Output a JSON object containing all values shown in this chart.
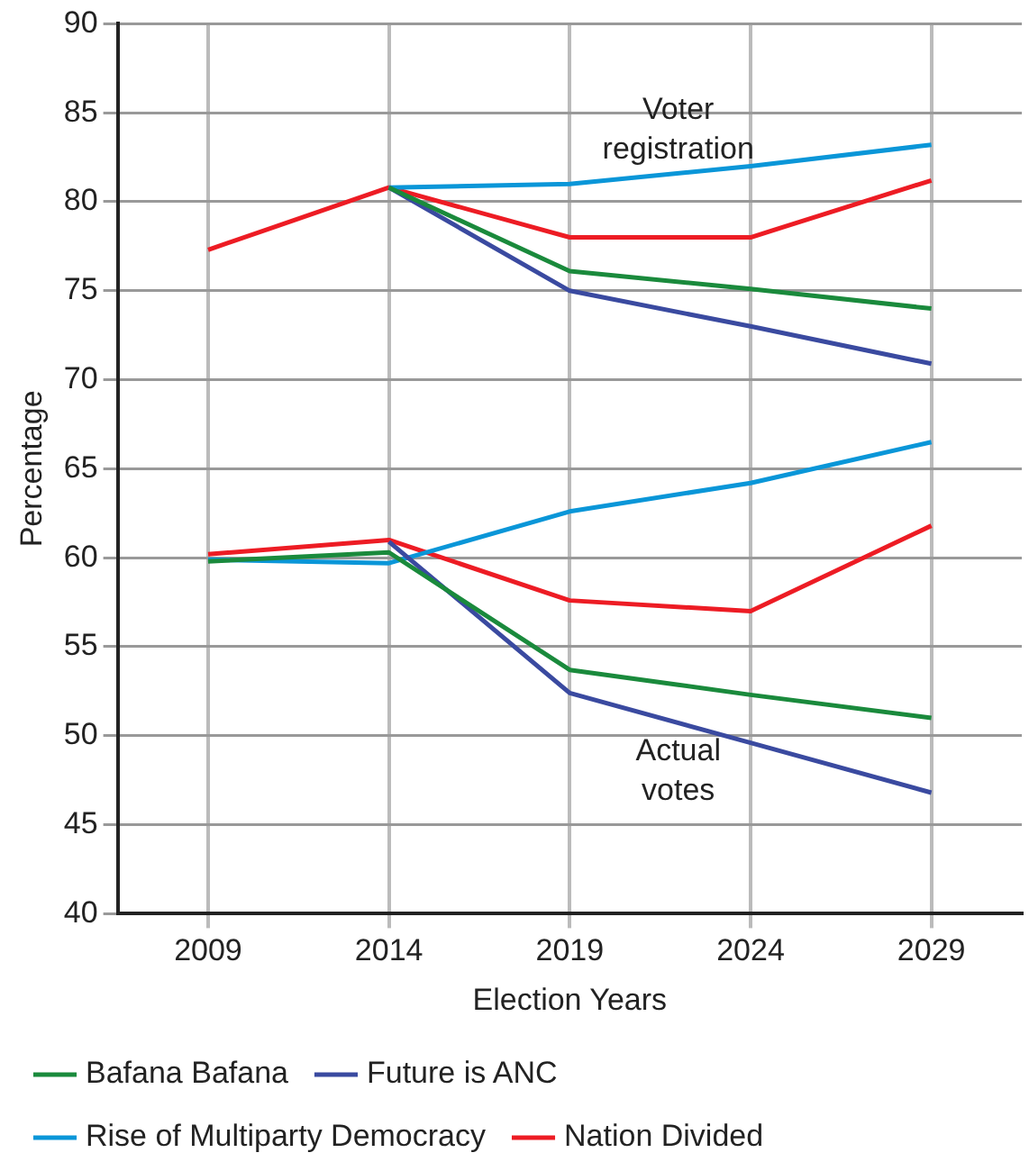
{
  "chart_data": {
    "type": "line",
    "xlabel": "Election Years",
    "ylabel": "Percentage",
    "categories": [
      "2009",
      "2014",
      "2019",
      "2024",
      "2029"
    ],
    "ylim": [
      40,
      90
    ],
    "yticks": [
      40,
      45,
      50,
      55,
      60,
      65,
      70,
      75,
      80,
      85,
      90
    ],
    "grid": true,
    "legend": "bottom",
    "marker": "none",
    "line_style": "solid",
    "series": [
      {
        "color": "#1a8a3c",
        "values": [
          null,
          80.8,
          76.1,
          75.1,
          74.0
        ]
      },
      {
        "color": "#3a4aa0",
        "values": [
          null,
          80.8,
          75.0,
          73.0,
          70.9
        ]
      },
      {
        "color": "#0a96d8",
        "values": [
          null,
          80.8,
          81.0,
          82.0,
          83.2
        ]
      },
      {
        "color": "#ed1c24",
        "values": [
          77.3,
          80.8,
          78.0,
          78.0,
          81.2
        ]
      },
      {
        "name": "Bafana Bafana",
        "color": "#1a8a3c",
        "values": [
          59.8,
          60.3,
          53.7,
          52.3,
          51.0
        ]
      },
      {
        "name": "Future is ANC",
        "color": "#3a4aa0",
        "values": [
          null,
          60.9,
          52.4,
          49.6,
          46.8
        ]
      },
      {
        "name": "Rise of Multiparty Democracy",
        "color": "#0a96d8",
        "values": [
          59.9,
          59.7,
          62.6,
          64.2,
          66.5
        ]
      },
      {
        "name": "Nation Divided",
        "color": "#ed1c24",
        "values": [
          60.2,
          61.0,
          57.6,
          57.0,
          61.8
        ]
      }
    ],
    "annotations": [
      "Voter registration",
      "Actual votes"
    ]
  }
}
